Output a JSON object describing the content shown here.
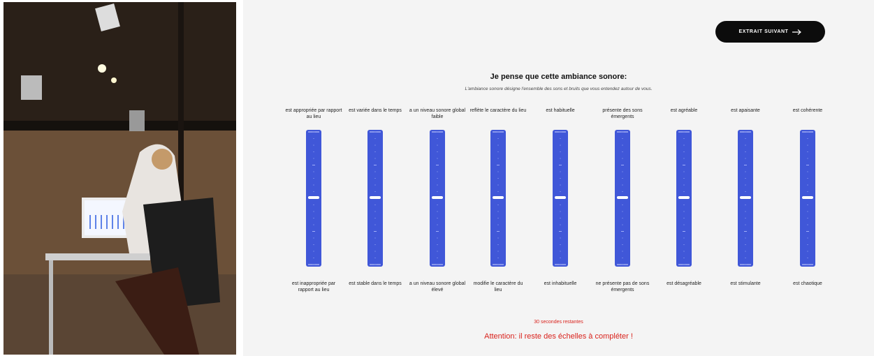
{
  "button": {
    "label": "EXTRAIT SUIVANT"
  },
  "question": {
    "title": "Je pense que cette ambiance sonore:",
    "subtitle": "L'ambiance sonore désigne l'ensemble des sons et bruits que vous entendez autour de vous."
  },
  "scales": [
    {
      "top": "est appropriée par rapport au lieu",
      "bottom": "est inappropriée par rapport au lieu"
    },
    {
      "top": "est variée dans le temps",
      "bottom": "est stable dans le temps"
    },
    {
      "top": "a un niveau sonore global faible",
      "bottom": "a un niveau sonore global élevé"
    },
    {
      "top": "reflète le caractère du lieu",
      "bottom": "modifie le caractère du lieu"
    },
    {
      "top": "est habituelle",
      "bottom": "est inhabituelle"
    },
    {
      "top": "présente des sons émergents",
      "bottom": "ne présente pas de sons émergents"
    },
    {
      "top": "est agréable",
      "bottom": "est désagréable"
    },
    {
      "top": "est apaisante",
      "bottom": "est stimulante"
    },
    {
      "top": "est cohérente",
      "bottom": "est chaotique"
    }
  ],
  "timer": "30 secondes restantes",
  "warning": "Attention: il reste des échelles à compléter !"
}
